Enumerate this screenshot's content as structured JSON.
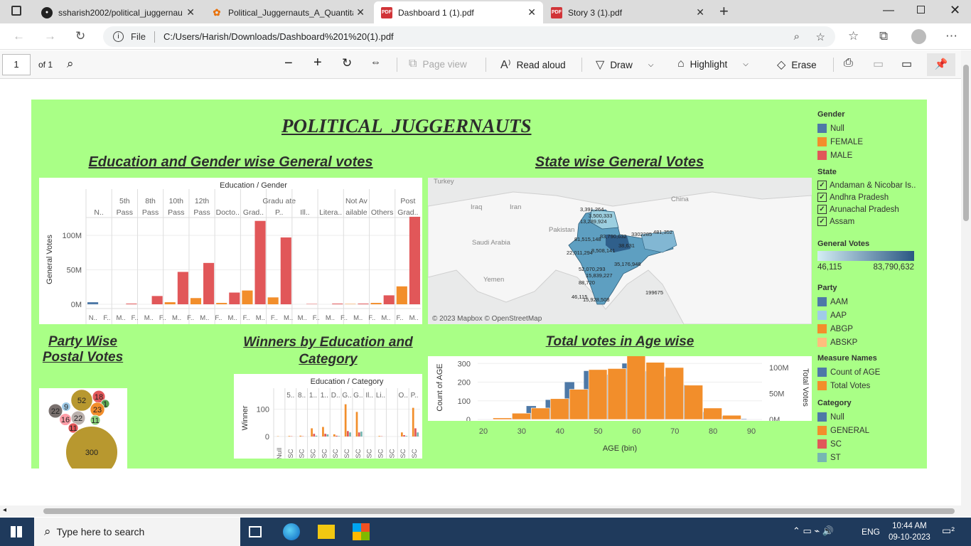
{
  "browser": {
    "tabs": [
      {
        "title": "ssharish2002/political_juggernau",
        "icon": "github-icon"
      },
      {
        "title": "Political_Juggernauts_A_Quantita",
        "icon": "colab-icon"
      },
      {
        "title": "Dashboard 1 (1).pdf",
        "icon": "pdf-icon",
        "active": true
      },
      {
        "title": "Story 3 (1).pdf",
        "icon": "pdf-icon"
      }
    ],
    "address_prefix": "File",
    "url": "C:/Users/Harish/Downloads/Dashboard%201%20(1).pdf"
  },
  "pdf_toolbar": {
    "page": "1",
    "of": "of 1",
    "page_view": "Page view",
    "read_aloud": "Read aloud",
    "draw": "Draw",
    "highlight": "Highlight",
    "erase": "Erase"
  },
  "dashboard": {
    "title": "POLITICAL  JUGGERNAUTS",
    "sheet1_title": "Education and Gender wise General votes",
    "sheet2_title": "State wise General Votes",
    "sheet3_title": "Party Wise Postal Votes",
    "sheet4_title": "Winners by Education and Category",
    "sheet5_title": "Total votes in Age wise",
    "map_credit": "© 2023 Mapbox © OpenStreetMap",
    "map_countries": [
      "Turkey",
      "Iraq",
      "Iran",
      "Pakistan",
      "Saudi Arabia",
      "Yemen",
      "China"
    ],
    "map_labels": [
      "3,391,264",
      "3,500,333",
      "13,289,924",
      "81,515,148",
      "83,790,632",
      "3302285",
      "481,352",
      "22,011,294",
      "8,508,141",
      "38,631",
      "35,176,948",
      "52,070,293",
      "15,839,227",
      "88,720",
      "46,115",
      "15,928,508",
      "199675"
    ]
  },
  "legends": {
    "gender": {
      "title": "Gender",
      "items": [
        {
          "label": "Null",
          "color": "#4e79a7"
        },
        {
          "label": "FEMALE",
          "color": "#f28e2b"
        },
        {
          "label": "MALE",
          "color": "#e15759"
        }
      ]
    },
    "state": {
      "title": "State",
      "items": [
        "Andaman & Nicobar Is..",
        "Andhra Pradesh",
        "Arunachal Pradesh",
        "Assam"
      ]
    },
    "general_votes": {
      "title": "General Votes",
      "min": "46,115",
      "max": "83,790,632"
    },
    "party": {
      "title": "Party",
      "items": [
        {
          "label": "AAM",
          "color": "#4e79a7"
        },
        {
          "label": "AAP",
          "color": "#a0cbe8"
        },
        {
          "label": "ABGP",
          "color": "#f28e2b"
        },
        {
          "label": "ABSKP",
          "color": "#ffbe7d"
        }
      ]
    },
    "measure": {
      "title": "Measure Names",
      "items": [
        {
          "label": "Count of AGE",
          "color": "#4e79a7"
        },
        {
          "label": "Total Votes",
          "color": "#f28e2b"
        }
      ]
    },
    "category": {
      "title": "Category",
      "items": [
        {
          "label": "Null",
          "color": "#4e79a7"
        },
        {
          "label": "GENERAL",
          "color": "#f28e2b"
        },
        {
          "label": "SC",
          "color": "#e15759"
        },
        {
          "label": "ST",
          "color": "#76b7b2"
        }
      ]
    }
  },
  "chart_data": [
    {
      "type": "bar",
      "title": "Education / Gender",
      "ylabel": "General Votes",
      "yticks": [
        "100M",
        "50M",
        "0M"
      ],
      "categories": [
        "N..",
        "5th Pass",
        "8th Pass",
        "10th Pass",
        "12th Pass",
        "Docto..",
        "Grad..",
        "Gradu ate P..",
        "Ill..",
        "Litera..",
        "Not Av ailable",
        "Others",
        "Post Grad.."
      ],
      "sub_labels": [
        "N..",
        "F..",
        "M..",
        "F..",
        "M..",
        "F..",
        "M..",
        "F..",
        "M..",
        "F..",
        "M..",
        "F..",
        "M..",
        "F..",
        "M..",
        "M..",
        "F..",
        "M..",
        "F..",
        "M..",
        "F..",
        "M..",
        "F..",
        "M.."
      ],
      "bars": [
        {
          "cat": 0,
          "gender": "Null",
          "value": 3
        },
        {
          "cat": 1,
          "gender": "MALE",
          "value": 1
        },
        {
          "cat": 2,
          "gender": "MALE",
          "value": 12
        },
        {
          "cat": 3,
          "gender": "FEMALE",
          "value": 3
        },
        {
          "cat": 3,
          "gender": "MALE",
          "value": 47
        },
        {
          "cat": 4,
          "gender": "FEMALE",
          "value": 9
        },
        {
          "cat": 4,
          "gender": "MALE",
          "value": 60
        },
        {
          "cat": 5,
          "gender": "FEMALE",
          "value": 2
        },
        {
          "cat": 5,
          "gender": "MALE",
          "value": 17
        },
        {
          "cat": 6,
          "gender": "FEMALE",
          "value": 20
        },
        {
          "cat": 6,
          "gender": "MALE",
          "value": 121
        },
        {
          "cat": 7,
          "gender": "FEMALE",
          "value": 10
        },
        {
          "cat": 7,
          "gender": "MALE",
          "value": 97
        },
        {
          "cat": 8,
          "gender": "MALE",
          "value": 0.5
        },
        {
          "cat": 9,
          "gender": "MALE",
          "value": 1
        },
        {
          "cat": 10,
          "gender": "FEMALE",
          "value": 0.5
        },
        {
          "cat": 10,
          "gender": "MALE",
          "value": 1
        },
        {
          "cat": 11,
          "gender": "FEMALE",
          "value": 2
        },
        {
          "cat": 11,
          "gender": "MALE",
          "value": 13
        },
        {
          "cat": 12,
          "gender": "FEMALE",
          "value": 26
        },
        {
          "cat": 12,
          "gender": "MALE",
          "value": 127
        }
      ]
    },
    {
      "type": "scatter",
      "title": "Party Wise Postal Votes",
      "bubbles": [
        {
          "label": "52",
          "value": 52,
          "color": "#b8982f"
        },
        {
          "label": "18",
          "value": 18,
          "color": "#e15759"
        },
        {
          "label": "22",
          "value": 22,
          "color": "#79706e"
        },
        {
          "label": "9",
          "value": 9,
          "color": "#a0cbe8"
        },
        {
          "label": "1",
          "value": 1,
          "color": "#59a14f"
        },
        {
          "label": "23",
          "value": 23,
          "color": "#f28e2b"
        },
        {
          "label": "16",
          "value": 16,
          "color": "#ff9da7"
        },
        {
          "label": "22",
          "value": 22,
          "color": "#bab0ac"
        },
        {
          "label": "11",
          "value": 11,
          "color": "#8cd17d"
        },
        {
          "label": "11",
          "value": 11,
          "color": "#e15759"
        },
        {
          "label": "300",
          "value": 300,
          "color": "#b8982f"
        }
      ]
    },
    {
      "type": "bar",
      "title": "Education / Category",
      "ylabel": "Winner",
      "yticks": [
        "100",
        "0"
      ],
      "categories": [
        "",
        "5..",
        "8..",
        "1..",
        "1..",
        "D..",
        "G..",
        "G..",
        "Il..",
        "Li..",
        "",
        "O..",
        "P.."
      ],
      "x_labels": [
        "Null",
        "SC",
        "SC",
        "SC",
        "SC",
        "SC",
        "SC",
        "SC",
        "SC",
        "SC",
        "SC",
        "SC",
        "SC"
      ],
      "values": [
        [
          0,
          1,
          0,
          0
        ],
        [
          0,
          2,
          1,
          0
        ],
        [
          0,
          3,
          1,
          0
        ],
        [
          0,
          30,
          10,
          3
        ],
        [
          0,
          35,
          10,
          8
        ],
        [
          0,
          8,
          3,
          2
        ],
        [
          0,
          118,
          20,
          15
        ],
        [
          0,
          90,
          15,
          18
        ],
        [
          0,
          0,
          0,
          0
        ],
        [
          0,
          2,
          1,
          0
        ],
        [
          0,
          0,
          0,
          0
        ],
        [
          0,
          15,
          5,
          2
        ],
        [
          0,
          105,
          30,
          15
        ]
      ]
    },
    {
      "type": "bar",
      "title": "Total votes in Age wise",
      "xlabel": "AGE (bin)",
      "ylabel": "Count of AGE",
      "y2label": "Total Votes",
      "xticks": [
        "20",
        "30",
        "40",
        "50",
        "60",
        "70",
        "80",
        "90"
      ],
      "yticks": [
        "300",
        "200",
        "100",
        "0"
      ],
      "y2ticks": [
        "100M",
        "50M",
        "0M"
      ],
      "bins": [
        20,
        25,
        30,
        35,
        40,
        45,
        50,
        55,
        60,
        65,
        70,
        75,
        80,
        85
      ],
      "count_of_age": [
        0,
        8,
        72,
        105,
        200,
        260,
        240,
        300,
        258,
        230,
        185,
        40,
        18,
        2
      ],
      "total_votes": [
        0,
        3,
        12,
        22,
        40,
        58,
        96,
        98,
        125,
        110,
        100,
        66,
        22,
        8
      ]
    }
  ]
}
